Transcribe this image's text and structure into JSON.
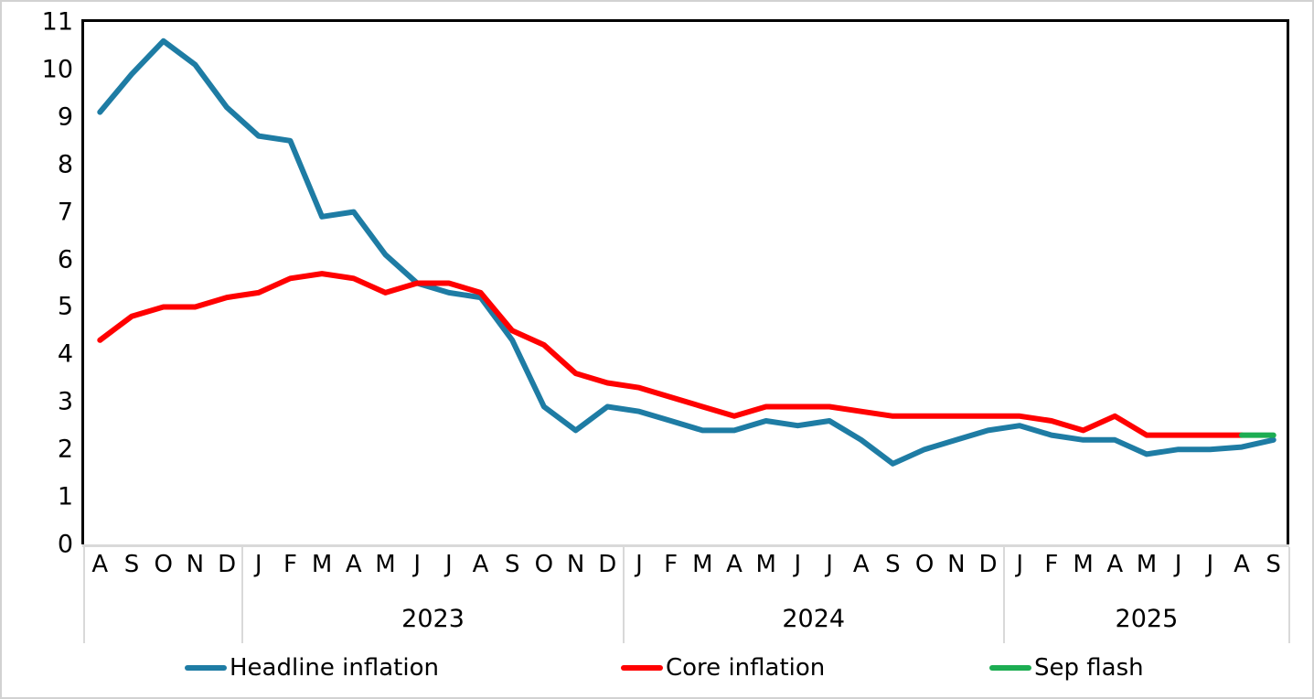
{
  "chart_data": {
    "type": "line",
    "title": "",
    "grid": false,
    "legend_position": "bottom",
    "ylim": [
      0,
      11
    ],
    "y_ticks": [
      0,
      1,
      2,
      3,
      4,
      5,
      6,
      7,
      8,
      9,
      10,
      11
    ],
    "x_months": [
      "A",
      "S",
      "O",
      "N",
      "D",
      "J",
      "F",
      "M",
      "A",
      "M",
      "J",
      "J",
      "A",
      "S",
      "O",
      "N",
      "D",
      "J",
      "F",
      "M",
      "A",
      "M",
      "J",
      "J",
      "A",
      "S",
      "O",
      "N",
      "D",
      "J",
      "F",
      "M",
      "A",
      "M",
      "J",
      "J",
      "A",
      "S"
    ],
    "year_groups": [
      {
        "label": "",
        "count": 5
      },
      {
        "label": "2023",
        "count": 12
      },
      {
        "label": "2024",
        "count": 12
      },
      {
        "label": "2025",
        "count": 9
      }
    ],
    "series": [
      {
        "name": "Headline inflation",
        "color": "#1E7CA4",
        "start_index": 0,
        "values": [
          9.1,
          9.9,
          10.6,
          10.1,
          9.2,
          8.6,
          8.5,
          6.9,
          7.0,
          6.1,
          5.5,
          5.3,
          5.2,
          4.3,
          2.9,
          2.4,
          2.9,
          2.8,
          2.6,
          2.4,
          2.4,
          2.6,
          2.5,
          2.6,
          2.2,
          1.7,
          2.0,
          2.2,
          2.4,
          2.5,
          2.3,
          2.2,
          2.2,
          1.9,
          2.0,
          2.0,
          2.05,
          2.2
        ]
      },
      {
        "name": "Core inflation",
        "color": "#FF0000",
        "start_index": 0,
        "values": [
          4.3,
          4.8,
          5.0,
          5.0,
          5.2,
          5.3,
          5.6,
          5.7,
          5.6,
          5.3,
          5.5,
          5.5,
          5.3,
          4.5,
          4.2,
          3.6,
          3.4,
          3.3,
          3.1,
          2.9,
          2.7,
          2.9,
          2.9,
          2.9,
          2.8,
          2.7,
          2.7,
          2.7,
          2.7,
          2.7,
          2.6,
          2.4,
          2.7,
          2.3,
          2.3,
          2.3,
          2.3
        ]
      },
      {
        "name": "Sep flash",
        "color": "#1CAD52",
        "start_index": 36,
        "values": [
          2.3,
          2.3
        ]
      }
    ]
  },
  "legend": {
    "items": [
      {
        "label": "Headline inflation"
      },
      {
        "label": "Core inflation"
      },
      {
        "label": "Sep flash"
      }
    ]
  }
}
